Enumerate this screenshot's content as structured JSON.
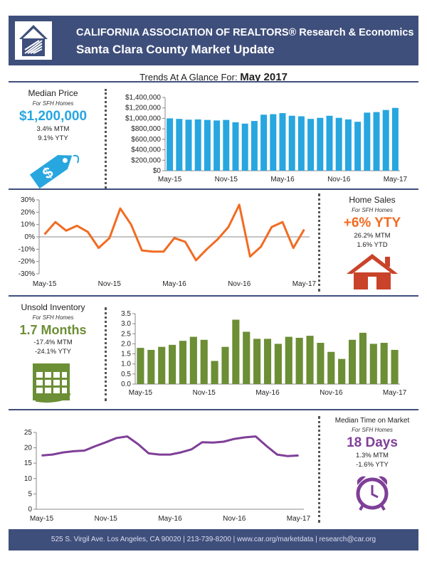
{
  "header": {
    "line1": "CALIFORNIA ASSOCIATION OF REALTORS® Research & Economics",
    "line2": "Santa Clara County Market Update"
  },
  "trends": {
    "label": "Trends At A Glance For: ",
    "period": "May 2017"
  },
  "colors": {
    "navy": "#3f4f7c",
    "blue": "#27a6e0",
    "orange": "#f26b21",
    "red": "#c9432a",
    "green": "#6c8e35",
    "purple": "#7f3f98"
  },
  "median_price": {
    "title": "Median Price",
    "subtitle": "For SFH Homes",
    "value": "$1,200,000",
    "mtm": "3.4% MTM",
    "ytd": "9.1% YTY",
    "icon": "price-tag-icon"
  },
  "home_sales": {
    "title": "Home Sales",
    "subtitle": "For SFH Homes",
    "value": "+6% YTY",
    "mtm": "26.2% MTM",
    "ytd": "1.6% YTD",
    "icon": "house-icon"
  },
  "inventory": {
    "title": "Unsold Inventory",
    "subtitle": "For SFH Homes",
    "value": "1.7 Months",
    "mtm": "-17.4% MTM",
    "ytd": "-24.1% YTY",
    "icon": "calendar-icon"
  },
  "time_on_market": {
    "title": "Median Time on Market",
    "subtitle": "For SFH Homes",
    "value": "18 Days",
    "mtm": "1.3% MTM",
    "ytd": "-1.6% YTY",
    "icon": "alarm-clock-icon"
  },
  "footer": {
    "text": "525 S. Virgil Ave. Los Angeles, CA 90020 | 213-739-8200 | www.car.org/marketdata | research@car.org"
  },
  "chart_data": [
    {
      "id": "price",
      "type": "bar",
      "x": [
        "May-15",
        "Jun-15",
        "Jul-15",
        "Aug-15",
        "Sep-15",
        "Oct-15",
        "Nov-15",
        "Dec-15",
        "Jan-16",
        "Feb-16",
        "Mar-16",
        "Apr-16",
        "May-16",
        "Jun-16",
        "Jul-16",
        "Aug-16",
        "Sep-16",
        "Oct-16",
        "Nov-16",
        "Dec-16",
        "Jan-17",
        "Feb-17",
        "Mar-17",
        "Apr-17",
        "May-17"
      ],
      "values": [
        1000000,
        990000,
        975000,
        980000,
        970000,
        960000,
        970000,
        925000,
        900000,
        950000,
        1070000,
        1080000,
        1100000,
        1050000,
        1040000,
        990000,
        1010000,
        1050000,
        1010000,
        980000,
        935000,
        1110000,
        1120000,
        1160000,
        1200000
      ],
      "ylim": [
        0,
        1400000
      ],
      "yticks": [
        "$0",
        "$200,000",
        "$400,000",
        "$600,000",
        "$800,000",
        "$1,000,000",
        "$1,200,000",
        "$1,400,000"
      ],
      "xticks": [
        "May-15",
        "Nov-15",
        "May-16",
        "Nov-16",
        "May-17"
      ]
    },
    {
      "id": "sales",
      "type": "line",
      "x": [
        "May-15",
        "Jun-15",
        "Jul-15",
        "Aug-15",
        "Sep-15",
        "Oct-15",
        "Nov-15",
        "Dec-15",
        "Jan-16",
        "Feb-16",
        "Mar-16",
        "Apr-16",
        "May-16",
        "Jun-16",
        "Jul-16",
        "Aug-16",
        "Sep-16",
        "Oct-16",
        "Nov-16",
        "Dec-16",
        "Jan-17",
        "Feb-17",
        "Mar-17",
        "Apr-17",
        "May-17"
      ],
      "values": [
        2,
        12,
        5,
        9,
        4,
        -9,
        -1,
        23,
        10,
        -11,
        -12,
        -12,
        -1,
        -4,
        -19,
        -10,
        -2,
        8,
        26,
        -16,
        -8,
        8,
        12,
        -9,
        6
      ],
      "ylim": [
        -30,
        30
      ],
      "yticks": [
        "-30%",
        "-20%",
        "-10%",
        "0%",
        "10%",
        "20%",
        "30%"
      ],
      "xticks": [
        "May-15",
        "Nov-15",
        "May-16",
        "Nov-16",
        "May-17"
      ]
    },
    {
      "id": "inventory",
      "type": "bar",
      "x": [
        "May-15",
        "Jun-15",
        "Jul-15",
        "Aug-15",
        "Sep-15",
        "Oct-15",
        "Nov-15",
        "Dec-15",
        "Jan-16",
        "Feb-16",
        "Mar-16",
        "Apr-16",
        "May-16",
        "Jun-16",
        "Jul-16",
        "Aug-16",
        "Sep-16",
        "Oct-16",
        "Nov-16",
        "Dec-16",
        "Jan-17",
        "Feb-17",
        "Mar-17",
        "Apr-17",
        "May-17"
      ],
      "values": [
        1.8,
        1.7,
        1.85,
        1.95,
        2.15,
        2.35,
        2.2,
        1.15,
        1.85,
        3.2,
        2.6,
        2.25,
        2.25,
        2.0,
        2.35,
        2.3,
        2.4,
        2.05,
        1.6,
        1.25,
        2.2,
        2.55,
        2.0,
        2.05,
        1.7
      ],
      "ylim": [
        0,
        3.5
      ],
      "yticks": [
        "0.0",
        "0.5",
        "1.0",
        "1.5",
        "2.0",
        "2.5",
        "3.0",
        "3.5"
      ],
      "xticks": [
        "May-15",
        "Nov-15",
        "May-16",
        "Nov-16",
        "May-17"
      ]
    },
    {
      "id": "time",
      "type": "line",
      "x": [
        "May-15",
        "Jun-15",
        "Jul-15",
        "Aug-15",
        "Sep-15",
        "Oct-15",
        "Nov-15",
        "Dec-15",
        "Jan-16",
        "Feb-16",
        "Mar-16",
        "Apr-16",
        "May-16",
        "Jun-16",
        "Jul-16",
        "Aug-16",
        "Sep-16",
        "Oct-16",
        "Nov-16",
        "Dec-16",
        "Jan-17",
        "Feb-17",
        "Mar-17",
        "Apr-17",
        "May-17"
      ],
      "values": [
        17.5,
        17.8,
        18.5,
        18.9,
        19.1,
        20.5,
        21.8,
        23.2,
        23.7,
        21.2,
        18.2,
        17.8,
        17.8,
        18.5,
        19.5,
        21.8,
        21.7,
        22.0,
        22.9,
        23.4,
        23.7,
        20.6,
        17.8,
        17.3,
        17.5
      ],
      "ylim": [
        0,
        25
      ],
      "yticks": [
        "0",
        "5",
        "10",
        "15",
        "20",
        "25"
      ],
      "xticks": [
        "May-15",
        "Nov-15",
        "May-16",
        "Nov-16",
        "May-17"
      ]
    }
  ]
}
